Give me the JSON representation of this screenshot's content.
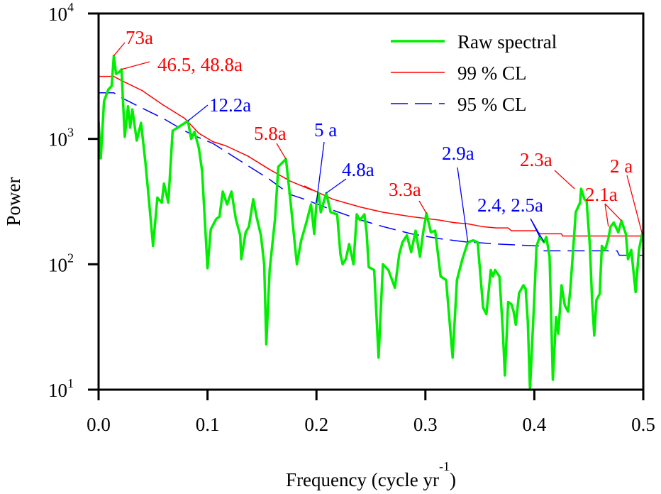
{
  "chart_data": {
    "type": "line",
    "title": "",
    "xlabel": "Frequency (cycle yr",
    "xlabel_sup": "-1",
    "xlabel_close": ")",
    "ylabel": "Power",
    "xlim": [
      0,
      0.5
    ],
    "ylim": [
      10,
      10000
    ],
    "yscale": "log",
    "grid": false,
    "legend_position": "top-right",
    "x_ticks": [
      {
        "value": 0.0,
        "label": "0.0"
      },
      {
        "value": 0.1,
        "label": "0.1"
      },
      {
        "value": 0.2,
        "label": "0.2"
      },
      {
        "value": 0.3,
        "label": "0.3"
      },
      {
        "value": 0.4,
        "label": "0.4"
      },
      {
        "value": 0.5,
        "label": "0.5"
      }
    ],
    "y_ticks": [
      {
        "value": 10,
        "base": "10",
        "exp": "1"
      },
      {
        "value": 100,
        "base": "10",
        "exp": "2"
      },
      {
        "value": 1000,
        "base": "10",
        "exp": "3"
      },
      {
        "value": 10000,
        "base": "10",
        "exp": "4"
      }
    ],
    "series": [
      {
        "name": "Raw spectral",
        "color": "#00ee00",
        "style": "solid",
        "points": [
          [
            0.0,
            1380
          ],
          [
            0.002,
            700
          ],
          [
            0.005,
            2000
          ],
          [
            0.009,
            2480
          ],
          [
            0.012,
            2640
          ],
          [
            0.014,
            4600
          ],
          [
            0.016,
            3300
          ],
          [
            0.019,
            3420
          ],
          [
            0.021,
            3580
          ],
          [
            0.024,
            1040
          ],
          [
            0.027,
            1820
          ],
          [
            0.029,
            1230
          ],
          [
            0.031,
            1720
          ],
          [
            0.035,
            970
          ],
          [
            0.039,
            1340
          ],
          [
            0.043,
            650
          ],
          [
            0.046,
            340
          ],
          [
            0.05,
            140
          ],
          [
            0.054,
            340
          ],
          [
            0.058,
            310
          ],
          [
            0.06,
            440
          ],
          [
            0.064,
            310
          ],
          [
            0.068,
            1160
          ],
          [
            0.072,
            1220
          ],
          [
            0.082,
            1390
          ],
          [
            0.085,
            1000
          ],
          [
            0.088,
            1140
          ],
          [
            0.092,
            850
          ],
          [
            0.095,
            560
          ],
          [
            0.1,
            93
          ],
          [
            0.103,
            190
          ],
          [
            0.108,
            230
          ],
          [
            0.111,
            240
          ],
          [
            0.114,
            380
          ],
          [
            0.118,
            300
          ],
          [
            0.122,
            380
          ],
          [
            0.126,
            230
          ],
          [
            0.13,
            170
          ],
          [
            0.131,
            110
          ],
          [
            0.135,
            180
          ],
          [
            0.138,
            200
          ],
          [
            0.142,
            330
          ],
          [
            0.145,
            240
          ],
          [
            0.149,
            170
          ],
          [
            0.152,
            100
          ],
          [
            0.154,
            23
          ],
          [
            0.157,
            90
          ],
          [
            0.162,
            230
          ],
          [
            0.165,
            600
          ],
          [
            0.172,
            690
          ],
          [
            0.176,
            330
          ],
          [
            0.182,
            100
          ],
          [
            0.186,
            155
          ],
          [
            0.191,
            220
          ],
          [
            0.195,
            300
          ],
          [
            0.198,
            175
          ],
          [
            0.2,
            310
          ],
          [
            0.202,
            370
          ],
          [
            0.204,
            260
          ],
          [
            0.209,
            370
          ],
          [
            0.213,
            260
          ],
          [
            0.219,
            250
          ],
          [
            0.222,
            120
          ],
          [
            0.224,
            100
          ],
          [
            0.227,
            110
          ],
          [
            0.23,
            145
          ],
          [
            0.234,
            100
          ],
          [
            0.237,
            250
          ],
          [
            0.24,
            225
          ],
          [
            0.244,
            250
          ],
          [
            0.246,
            180
          ],
          [
            0.248,
            95
          ],
          [
            0.253,
            90
          ],
          [
            0.257,
            18
          ],
          [
            0.261,
            100
          ],
          [
            0.266,
            90
          ],
          [
            0.272,
            65
          ],
          [
            0.276,
            120
          ],
          [
            0.279,
            150
          ],
          [
            0.283,
            170
          ],
          [
            0.287,
            125
          ],
          [
            0.291,
            185
          ],
          [
            0.295,
            115
          ],
          [
            0.298,
            180
          ],
          [
            0.301,
            255
          ],
          [
            0.305,
            180
          ],
          [
            0.309,
            185
          ],
          [
            0.314,
            80
          ],
          [
            0.319,
            75
          ],
          [
            0.325,
            18
          ],
          [
            0.329,
            75
          ],
          [
            0.334,
            110
          ],
          [
            0.339,
            150
          ],
          [
            0.344,
            155
          ],
          [
            0.348,
            150
          ],
          [
            0.353,
            45
          ],
          [
            0.356,
            40
          ],
          [
            0.36,
            90
          ],
          [
            0.362,
            80
          ],
          [
            0.364,
            90
          ],
          [
            0.368,
            80
          ],
          [
            0.371,
            30
          ],
          [
            0.373,
            13
          ],
          [
            0.376,
            50
          ],
          [
            0.379,
            48
          ],
          [
            0.381,
            42
          ],
          [
            0.383,
            33
          ],
          [
            0.386,
            59
          ],
          [
            0.39,
            68
          ],
          [
            0.392,
            64
          ],
          [
            0.394,
            35
          ],
          [
            0.396,
            10
          ],
          [
            0.4,
            55
          ],
          [
            0.402,
            140
          ],
          [
            0.405,
            165
          ],
          [
            0.409,
            150
          ],
          [
            0.411,
            165
          ],
          [
            0.414,
            115
          ],
          [
            0.417,
            12
          ],
          [
            0.42,
            38
          ],
          [
            0.422,
            28
          ],
          [
            0.425,
            68
          ],
          [
            0.428,
            47
          ],
          [
            0.431,
            42
          ],
          [
            0.433,
            63
          ],
          [
            0.435,
            110
          ],
          [
            0.438,
            260
          ],
          [
            0.442,
            310
          ],
          [
            0.443,
            400
          ],
          [
            0.446,
            330
          ],
          [
            0.448,
            320
          ],
          [
            0.451,
            140
          ],
          [
            0.453,
            52
          ],
          [
            0.455,
            27
          ],
          [
            0.457,
            52
          ],
          [
            0.46,
            58
          ],
          [
            0.462,
            140
          ],
          [
            0.465,
            130
          ],
          [
            0.468,
            160
          ],
          [
            0.47,
            200
          ],
          [
            0.473,
            215
          ],
          [
            0.477,
            180
          ],
          [
            0.48,
            222
          ],
          [
            0.484,
            175
          ],
          [
            0.486,
            110
          ],
          [
            0.489,
            130
          ],
          [
            0.493,
            60
          ],
          [
            0.496,
            130
          ],
          [
            0.499,
            175
          ],
          [
            0.5,
            160
          ]
        ]
      },
      {
        "name": "99 % CL",
        "color": "#ff0000",
        "style": "solid",
        "points": [
          [
            0.0,
            3150
          ],
          [
            0.014,
            3150
          ],
          [
            0.02,
            2950
          ],
          [
            0.04,
            2430
          ],
          [
            0.059,
            1870
          ],
          [
            0.079,
            1460
          ],
          [
            0.092,
            1110
          ],
          [
            0.105,
            950
          ],
          [
            0.117,
            880
          ],
          [
            0.137,
            730
          ],
          [
            0.157,
            570
          ],
          [
            0.176,
            460
          ],
          [
            0.196,
            390
          ],
          [
            0.189,
            420
          ],
          [
            0.215,
            330
          ],
          [
            0.241,
            285
          ],
          [
            0.261,
            260
          ],
          [
            0.287,
            240
          ],
          [
            0.313,
            225
          ],
          [
            0.326,
            215
          ],
          [
            0.339,
            210
          ],
          [
            0.352,
            200
          ],
          [
            0.365,
            195
          ],
          [
            0.376,
            195
          ],
          [
            0.379,
            185
          ],
          [
            0.402,
            185
          ],
          [
            0.405,
            175
          ],
          [
            0.425,
            175
          ],
          [
            0.426,
            168
          ],
          [
            0.5,
            168
          ]
        ]
      },
      {
        "name": "95 % CL",
        "color": "#0000ff",
        "style": "dashed",
        "points": [
          [
            0.0,
            2330
          ],
          [
            0.014,
            2330
          ],
          [
            0.02,
            2150
          ],
          [
            0.04,
            1760
          ],
          [
            0.059,
            1460
          ],
          [
            0.079,
            1160
          ],
          [
            0.089,
            1050
          ],
          [
            0.105,
            920
          ],
          [
            0.131,
            660
          ],
          [
            0.157,
            475
          ],
          [
            0.176,
            360
          ],
          [
            0.189,
            330
          ],
          [
            0.215,
            270
          ],
          [
            0.241,
            225
          ],
          [
            0.261,
            200
          ],
          [
            0.287,
            175
          ],
          [
            0.313,
            160
          ],
          [
            0.326,
            155
          ],
          [
            0.339,
            150
          ],
          [
            0.352,
            148
          ],
          [
            0.365,
            145
          ],
          [
            0.404,
            140
          ],
          [
            0.407,
            128
          ],
          [
            0.476,
            128
          ],
          [
            0.478,
            118
          ],
          [
            0.5,
            118
          ]
        ]
      }
    ],
    "annotations": [
      {
        "text": "73a",
        "color": "#ff0000",
        "target": [
          0.014,
          4600
        ]
      },
      {
        "text": "46.5, 48.8a",
        "color": "#ff0000",
        "target": [
          0.021,
          3580
        ]
      },
      {
        "text": "12.2a",
        "color": "#0000ff",
        "target": [
          0.082,
          1390
        ]
      },
      {
        "text": "5.8a",
        "color": "#ff0000",
        "target": [
          0.172,
          690
        ]
      },
      {
        "text": "5 a",
        "color": "#0000ff",
        "target": [
          0.2,
          310
        ]
      },
      {
        "text": "4.8a",
        "color": "#0000ff",
        "target": [
          0.209,
          370
        ]
      },
      {
        "text": "3.3a",
        "color": "#ff0000",
        "target": [
          0.301,
          255
        ]
      },
      {
        "text": "2.9a",
        "color": "#0000ff",
        "target": [
          0.339,
          150
        ]
      },
      {
        "text": "2.4, 2.5a",
        "color": "#0000ff",
        "target": [
          0.405,
          165
        ]
      },
      {
        "text": "2.3a",
        "color": "#ff0000",
        "target": [
          0.437,
          400
        ]
      },
      {
        "text": "2.1a",
        "color": "#ff0000",
        "target": [
          0.468,
          200
        ]
      },
      {
        "text": "2 a",
        "color": "#ff0000",
        "target": [
          0.499,
          175
        ]
      }
    ]
  }
}
